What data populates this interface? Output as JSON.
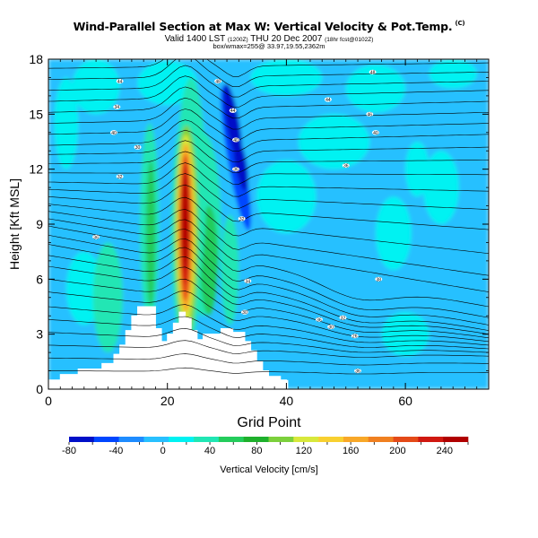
{
  "header": {
    "title": "Wind-Parallel Section at Max W: Vertical Velocity & Pot.Temp.",
    "title_mark": "(C)",
    "valid_line": "Valid 1400 LST",
    "valid_paren": "(1200Z)",
    "valid_date": "THU 20 Dec 2007",
    "valid_tail": "(18hr fcst@0102Z)",
    "sub_line": "box/wmax=255@ 33.97,19.55,2362m"
  },
  "chart_data": {
    "type": "heatmap",
    "xlabel": "Grid Point",
    "ylabel": "Height [Kft MSL]",
    "xlim": [
      0,
      74
    ],
    "ylim": [
      0,
      18
    ],
    "x_ticks": [
      0,
      20,
      40,
      60
    ],
    "y_ticks": [
      0,
      3,
      6,
      9,
      12,
      15,
      18
    ],
    "colorbar": {
      "label": "Vertical Velocity [cm/s]",
      "min": -80,
      "max": 260,
      "tick_values": [
        -80,
        -40,
        0,
        40,
        80,
        120,
        160,
        200,
        240
      ],
      "colors": [
        "#0010c8",
        "#0046ff",
        "#1e8cff",
        "#28c0ff",
        "#00f2f2",
        "#20e6b4",
        "#24cc5c",
        "#1eb02c",
        "#7cd03c",
        "#d8e83c",
        "#f8d030",
        "#f8a828",
        "#f08020",
        "#e44a18",
        "#d01810",
        "#b00000"
      ]
    },
    "field_features": [
      {
        "kind": "updraft",
        "x": 23,
        "y_center": 8.5,
        "peak": 255
      },
      {
        "kind": "updraft",
        "x": 17,
        "y_center": 8.5,
        "peak": 45
      },
      {
        "kind": "downdraft",
        "x": 31.5,
        "y_center": 12,
        "peak": -65
      },
      {
        "kind": "downdraft",
        "x": 10,
        "y_center": 9.5,
        "peak": -15
      }
    ],
    "terrain": [
      [
        0,
        0.5
      ],
      [
        2,
        0.5
      ],
      [
        2,
        0.8
      ],
      [
        5,
        0.8
      ],
      [
        5,
        1.1
      ],
      [
        9,
        1.1
      ],
      [
        9,
        1.4
      ],
      [
        11,
        1.4
      ],
      [
        11,
        1.9
      ],
      [
        12,
        1.9
      ],
      [
        12,
        2.4
      ],
      [
        13,
        2.4
      ],
      [
        13,
        3.2
      ],
      [
        14,
        3.2
      ],
      [
        14,
        4.0
      ],
      [
        15,
        4.0
      ],
      [
        15,
        4.5
      ],
      [
        18,
        4.5
      ],
      [
        18,
        3.3
      ],
      [
        19,
        3.3
      ],
      [
        19,
        2.6
      ],
      [
        20,
        2.6
      ],
      [
        20,
        3.0
      ],
      [
        21,
        3.0
      ],
      [
        21,
        3.6
      ],
      [
        22,
        3.6
      ],
      [
        22,
        4.2
      ],
      [
        23,
        4.2
      ],
      [
        23,
        3.9
      ],
      [
        24,
        3.9
      ],
      [
        24,
        3.2
      ],
      [
        25,
        3.2
      ],
      [
        25,
        2.7
      ],
      [
        26,
        2.7
      ],
      [
        26,
        3.0
      ],
      [
        29,
        3.0
      ],
      [
        29,
        3.3
      ],
      [
        31,
        3.3
      ],
      [
        31,
        3.1
      ],
      [
        33,
        3.1
      ],
      [
        33,
        2.6
      ],
      [
        34,
        2.6
      ],
      [
        34,
        2.1
      ],
      [
        35,
        2.1
      ],
      [
        35,
        1.5
      ],
      [
        36,
        1.5
      ],
      [
        36,
        1.0
      ],
      [
        37,
        1.0
      ],
      [
        37,
        0.7
      ],
      [
        39,
        0.7
      ],
      [
        39,
        0.5
      ],
      [
        40,
        0.5
      ],
      [
        40,
        0.0
      ]
    ],
    "isentropes": [
      {
        "label": "36",
        "y0": 1.0,
        "y1": 0.9
      },
      {
        "label": "",
        "y0": 1.7,
        "y1": 1.4
      },
      {
        "label": "",
        "y0": 2.4,
        "y1": 1.8
      },
      {
        "label": "",
        "y0": 3.1,
        "y1": 2.0
      },
      {
        "label": "",
        "y0": 3.8,
        "y1": 2.2
      },
      {
        "label": "",
        "y0": 4.5,
        "y1": 2.4
      },
      {
        "label": "",
        "y0": 5.3,
        "y1": 2.6
      },
      {
        "label": "",
        "y0": 6.0,
        "y1": 2.8
      },
      {
        "label": "",
        "y0": 6.7,
        "y1": 3.0
      },
      {
        "label": "",
        "y0": 7.3,
        "y1": 3.2
      },
      {
        "label": "",
        "y0": 7.9,
        "y1": 3.5
      },
      {
        "label": "",
        "y0": 8.4,
        "y1": 3.9
      },
      {
        "label": "",
        "y0": 8.9,
        "y1": 4.5
      },
      {
        "label": "",
        "y0": 9.3,
        "y1": 5.3
      },
      {
        "label": "",
        "y0": 9.7,
        "y1": 6.2
      },
      {
        "label": "",
        "y0": 10.1,
        "y1": 7.4
      },
      {
        "label": "",
        "y0": 10.5,
        "y1": 8.7
      },
      {
        "label": "",
        "y0": 10.9,
        "y1": 9.8
      },
      {
        "label": "",
        "y0": 11.3,
        "y1": 10.8
      },
      {
        "label": "",
        "y0": 11.8,
        "y1": 11.7
      },
      {
        "label": "",
        "y0": 12.3,
        "y1": 12.5
      },
      {
        "label": "",
        "y0": 12.8,
        "y1": 13.2
      },
      {
        "label": "",
        "y0": 13.3,
        "y1": 13.9
      },
      {
        "label": "",
        "y0": 13.9,
        "y1": 14.5
      },
      {
        "label": "",
        "y0": 14.5,
        "y1": 15.1
      },
      {
        "label": "",
        "y0": 15.1,
        "y1": 15.7
      },
      {
        "label": "",
        "y0": 15.7,
        "y1": 16.3
      },
      {
        "label": "",
        "y0": 16.3,
        "y1": 16.8
      },
      {
        "label": "",
        "y0": 16.9,
        "y1": 17.3
      },
      {
        "label": "",
        "y0": 17.5,
        "y1": 17.8
      }
    ],
    "contour_labels": [
      {
        "text": "44",
        "x": 12,
        "y": 16.8
      },
      {
        "text": "34",
        "x": 11.5,
        "y": 15.4
      },
      {
        "text": "40",
        "x": 11,
        "y": 14.0
      },
      {
        "text": "30",
        "x": 15,
        "y": 13.2
      },
      {
        "text": "32",
        "x": 12,
        "y": 11.6
      },
      {
        "text": "36",
        "x": 8,
        "y": 8.3
      },
      {
        "text": "48",
        "x": 28.5,
        "y": 16.8
      },
      {
        "text": "44",
        "x": 31,
        "y": 15.2
      },
      {
        "text": "40",
        "x": 31.5,
        "y": 13.6
      },
      {
        "text": "36",
        "x": 31.5,
        "y": 12.0
      },
      {
        "text": "32",
        "x": 32.5,
        "y": 9.3
      },
      {
        "text": "34",
        "x": 33.5,
        "y": 5.9
      },
      {
        "text": "30",
        "x": 33,
        "y": 4.2
      },
      {
        "text": "44",
        "x": 47,
        "y": 15.8
      },
      {
        "text": "48",
        "x": 54.5,
        "y": 17.3
      },
      {
        "text": "46",
        "x": 54,
        "y": 15.0
      },
      {
        "text": "40",
        "x": 55,
        "y": 14.0
      },
      {
        "text": "36",
        "x": 50,
        "y": 12.2
      },
      {
        "text": "38",
        "x": 55.5,
        "y": 6.0
      },
      {
        "text": "36",
        "x": 45.5,
        "y": 3.8
      },
      {
        "text": "30",
        "x": 47.5,
        "y": 3.4
      },
      {
        "text": "32",
        "x": 49.5,
        "y": 3.9
      },
      {
        "text": "26",
        "x": 51.5,
        "y": 2.9
      },
      {
        "text": "36",
        "x": 52,
        "y": 1.0
      }
    ]
  }
}
